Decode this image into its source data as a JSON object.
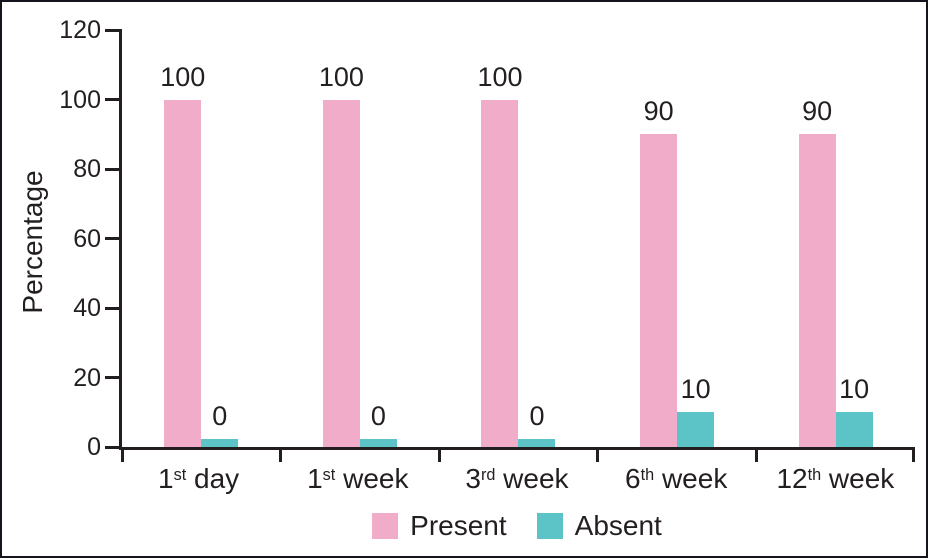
{
  "figure": {
    "background": "#ffffff",
    "border_color": "#15141c"
  },
  "chart_data": {
    "type": "bar",
    "title": "",
    "ylabel": "Percentage",
    "xlabel": "",
    "ylim": [
      0,
      120
    ],
    "y_ticks": [
      0,
      20,
      40,
      60,
      80,
      100,
      120
    ],
    "grid": false,
    "legend_position": "bottom-center",
    "value_labels_shown": true,
    "axis_color": "#231f20",
    "text_color": "#231f20",
    "categories": [
      {
        "label": "1st day",
        "base": "1",
        "sup": "st",
        "tail": " day"
      },
      {
        "label": "1st week",
        "base": "1",
        "sup": "st",
        "tail": " week"
      },
      {
        "label": "3rd week",
        "base": "3",
        "sup": "rd",
        "tail": " week"
      },
      {
        "label": "6th week",
        "base": "6",
        "sup": "th",
        "tail": " week"
      },
      {
        "label": "12th week",
        "base": "12",
        "sup": "th",
        "tail": " week"
      }
    ],
    "series": [
      {
        "name": "Present",
        "color": "#f0acc8",
        "values": [
          100,
          100,
          100,
          90,
          90
        ]
      },
      {
        "name": "Absent",
        "color": "#5cc4c6",
        "values": [
          0,
          0,
          0,
          10,
          10
        ]
      }
    ]
  }
}
